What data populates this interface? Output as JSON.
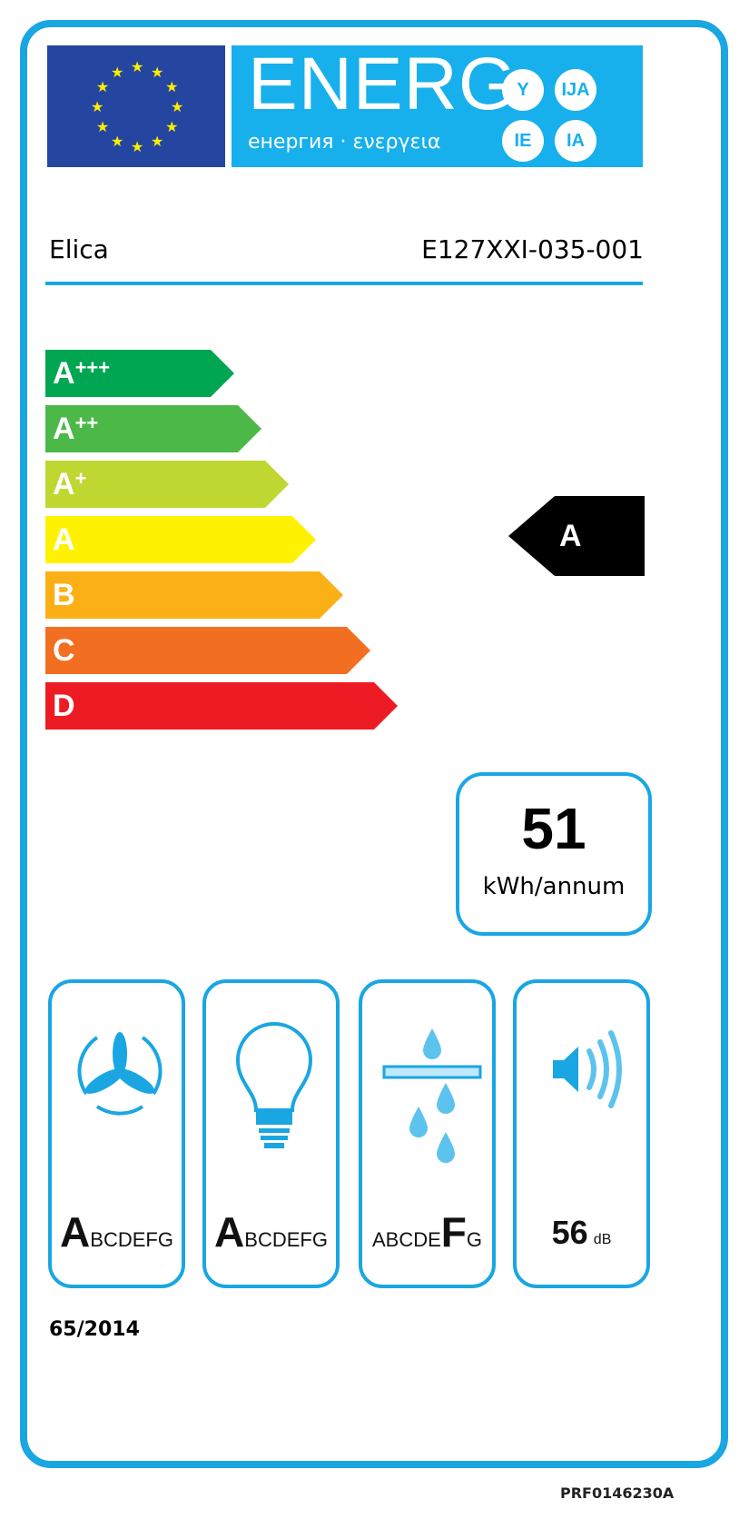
{
  "header": {
    "title": "ENERG",
    "subtitle": "енергия · ενεργεια",
    "suffixes": [
      "Y",
      "IJA",
      "IE",
      "IA"
    ]
  },
  "supplier": "Elica",
  "model": "E127XXI-035-001",
  "scale": [
    {
      "label": "A",
      "sup": "+++",
      "color": "#00a651"
    },
    {
      "label": "A",
      "sup": "++",
      "color": "#4cb848"
    },
    {
      "label": "A",
      "sup": "+",
      "color": "#bfd730"
    },
    {
      "label": "A",
      "sup": "",
      "color": "#fff200"
    },
    {
      "label": "B",
      "sup": "",
      "color": "#fbb116"
    },
    {
      "label": "C",
      "sup": "",
      "color": "#f26f22"
    },
    {
      "label": "D",
      "sup": "",
      "color": "#ed1c24"
    }
  ],
  "rating": "A",
  "consumption": {
    "value": "51",
    "unit": "kWh/annum"
  },
  "icons": [
    {
      "name": "fan-icon",
      "highlight": "A",
      "rest": "BCDEFG",
      "pre": ""
    },
    {
      "name": "light-bulb-icon",
      "highlight": "A",
      "rest": "BCDEFG",
      "pre": ""
    },
    {
      "name": "grease-filter-icon",
      "pre": "ABCDE",
      "highlight": "F",
      "rest": "G"
    }
  ],
  "noise": {
    "value": "56",
    "unit": "dB"
  },
  "regulation": "65/2014",
  "code": "PRF0146230A",
  "colors": {
    "frame": "#1aa6e2",
    "flag": "#2446a0",
    "energ": "#17b0ec"
  }
}
